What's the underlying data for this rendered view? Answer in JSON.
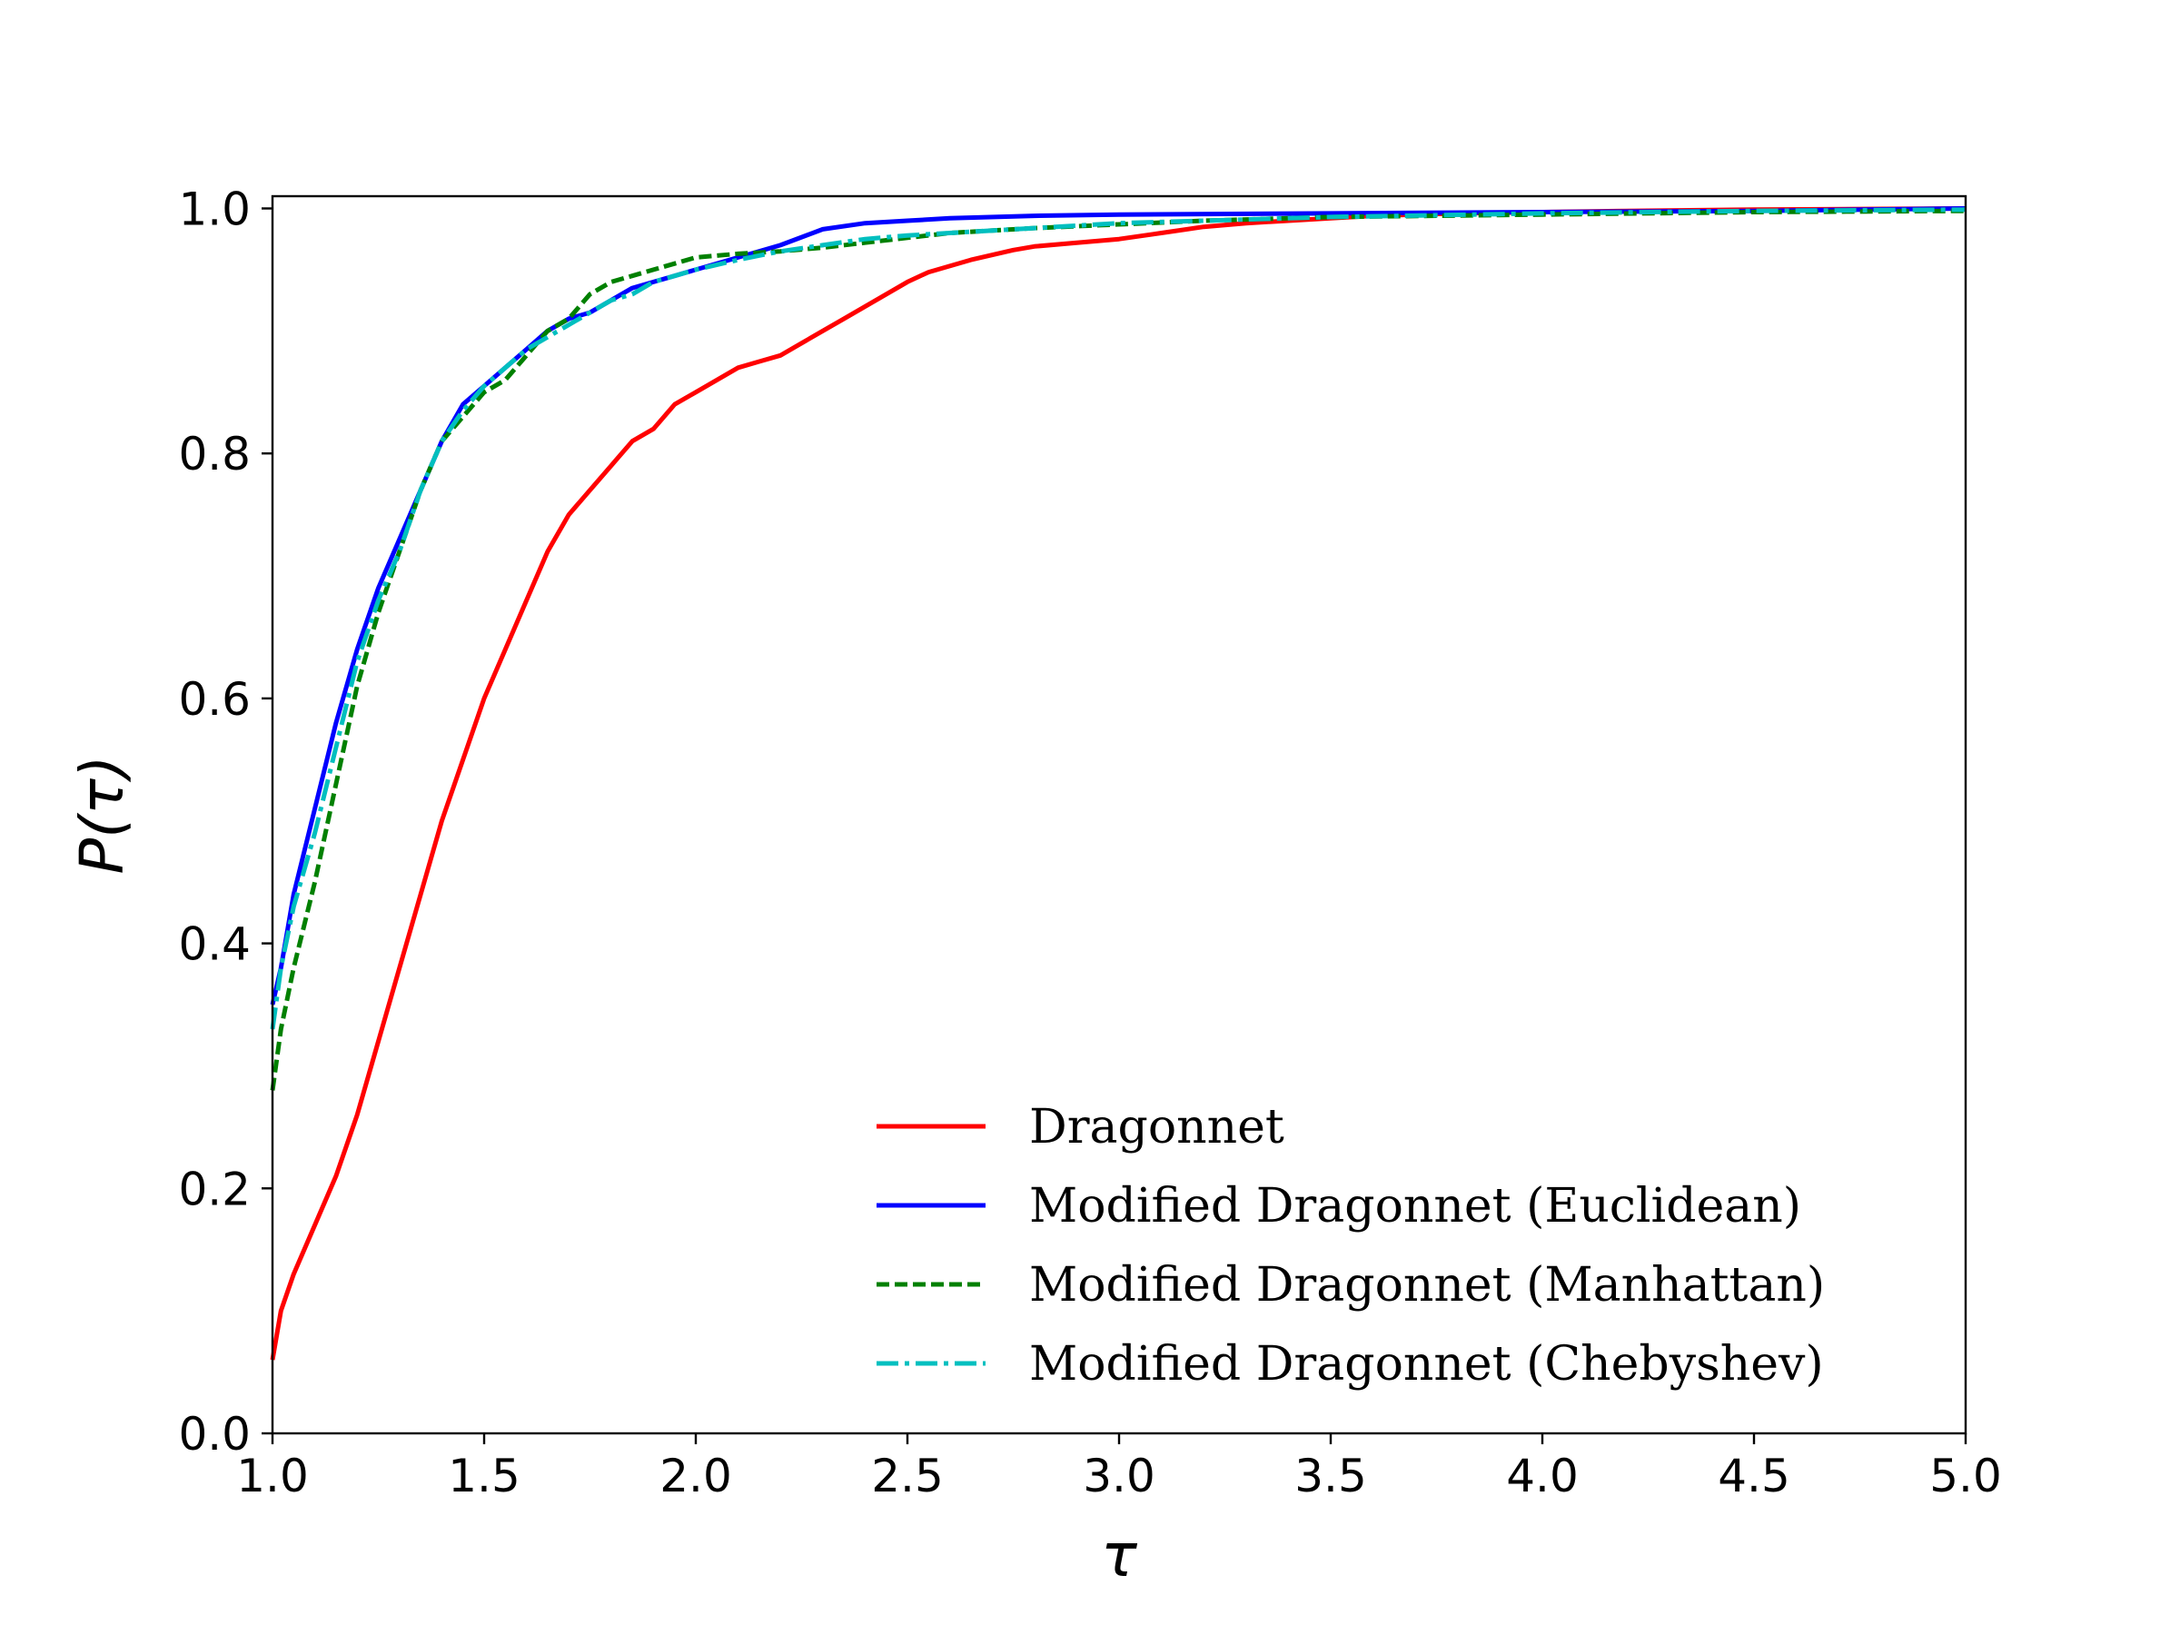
{
  "chart_data": {
    "type": "line",
    "title": "",
    "xlabel": "τ",
    "ylabel": "P(τ)",
    "xlim": [
      1.0,
      5.0
    ],
    "ylim": [
      0.0,
      1.01
    ],
    "x_ticks": [
      "1.0",
      "1.5",
      "2.0",
      "2.5",
      "3.0",
      "3.5",
      "4.0",
      "4.5",
      "5.0"
    ],
    "y_ticks": [
      "0.0",
      "0.2",
      "0.4",
      "0.6",
      "0.8",
      "1.0"
    ],
    "grid": false,
    "legend_position": "lower-right",
    "series": [
      {
        "name": "Dragonnet",
        "color": "#ff0000",
        "style": "solid",
        "x": [
          1.0,
          1.02,
          1.05,
          1.1,
          1.15,
          1.2,
          1.25,
          1.3,
          1.35,
          1.4,
          1.45,
          1.5,
          1.55,
          1.6,
          1.65,
          1.7,
          1.75,
          1.8,
          1.85,
          1.9,
          1.95,
          2.0,
          2.05,
          2.1,
          2.15,
          2.2,
          2.25,
          2.3,
          2.35,
          2.4,
          2.45,
          2.5,
          2.55,
          2.6,
          2.65,
          2.7,
          2.75,
          2.8,
          2.9,
          3.0,
          3.1,
          3.2,
          3.3,
          3.4,
          3.5,
          3.6,
          3.8,
          4.0,
          4.2,
          4.5,
          5.0
        ],
        "y": [
          0.06,
          0.1,
          0.13,
          0.17,
          0.21,
          0.26,
          0.32,
          0.38,
          0.44,
          0.5,
          0.55,
          0.6,
          0.64,
          0.68,
          0.72,
          0.75,
          0.77,
          0.79,
          0.81,
          0.82,
          0.84,
          0.85,
          0.86,
          0.87,
          0.875,
          0.88,
          0.89,
          0.9,
          0.91,
          0.92,
          0.93,
          0.94,
          0.948,
          0.953,
          0.958,
          0.962,
          0.966,
          0.969,
          0.972,
          0.975,
          0.98,
          0.985,
          0.988,
          0.99,
          0.992,
          0.994,
          0.996,
          0.997,
          0.998,
          0.999,
          1.0
        ]
      },
      {
        "name": "Modified Dragonnet (Euclidean)",
        "color": "#0000ff",
        "style": "solid",
        "x": [
          1.0,
          1.02,
          1.05,
          1.1,
          1.15,
          1.2,
          1.25,
          1.3,
          1.35,
          1.4,
          1.45,
          1.5,
          1.55,
          1.6,
          1.65,
          1.7,
          1.75,
          1.8,
          1.85,
          1.9,
          1.95,
          2.0,
          2.1,
          2.2,
          2.3,
          2.4,
          2.5,
          2.6,
          2.8,
          3.0,
          3.5,
          4.0,
          4.5,
          5.0
        ],
        "y": [
          0.35,
          0.38,
          0.44,
          0.51,
          0.58,
          0.64,
          0.69,
          0.73,
          0.77,
          0.81,
          0.84,
          0.855,
          0.87,
          0.885,
          0.9,
          0.91,
          0.915,
          0.925,
          0.935,
          0.94,
          0.945,
          0.95,
          0.96,
          0.97,
          0.983,
          0.988,
          0.99,
          0.992,
          0.994,
          0.995,
          0.996,
          0.997,
          0.998,
          1.0
        ]
      },
      {
        "name": "Modified Dragonnet (Manhattan)",
        "color": "#008000",
        "style": "dashed",
        "x": [
          1.0,
          1.02,
          1.05,
          1.1,
          1.15,
          1.2,
          1.25,
          1.3,
          1.35,
          1.4,
          1.45,
          1.5,
          1.55,
          1.6,
          1.65,
          1.7,
          1.75,
          1.8,
          1.85,
          1.9,
          1.95,
          2.0,
          2.1,
          2.2,
          2.3,
          2.4,
          2.5,
          2.6,
          2.8,
          3.0,
          3.2,
          3.5,
          4.0,
          4.5,
          5.0
        ],
        "y": [
          0.28,
          0.33,
          0.38,
          0.45,
          0.53,
          0.61,
          0.67,
          0.72,
          0.77,
          0.81,
          0.83,
          0.85,
          0.86,
          0.88,
          0.9,
          0.91,
          0.93,
          0.94,
          0.945,
          0.95,
          0.955,
          0.96,
          0.963,
          0.965,
          0.968,
          0.972,
          0.976,
          0.98,
          0.984,
          0.987,
          0.99,
          0.993,
          0.995,
          0.997,
          0.998
        ]
      },
      {
        "name": "Modified Dragonnet (Chebyshev)",
        "color": "#00bfbf",
        "style": "dashdot",
        "x": [
          1.0,
          1.02,
          1.05,
          1.1,
          1.15,
          1.2,
          1.25,
          1.3,
          1.35,
          1.4,
          1.45,
          1.5,
          1.55,
          1.6,
          1.65,
          1.7,
          1.75,
          1.8,
          1.85,
          1.9,
          1.95,
          2.0,
          2.1,
          2.2,
          2.3,
          2.4,
          2.5,
          2.6,
          2.8,
          3.0,
          3.2,
          3.5,
          4.0,
          4.5,
          5.0
        ],
        "y": [
          0.33,
          0.38,
          0.43,
          0.49,
          0.56,
          0.63,
          0.68,
          0.72,
          0.77,
          0.81,
          0.835,
          0.855,
          0.87,
          0.885,
          0.895,
          0.905,
          0.915,
          0.925,
          0.93,
          0.94,
          0.945,
          0.95,
          0.958,
          0.965,
          0.97,
          0.975,
          0.978,
          0.98,
          0.984,
          0.988,
          0.99,
          0.993,
          0.996,
          0.998,
          0.999
        ]
      }
    ]
  }
}
